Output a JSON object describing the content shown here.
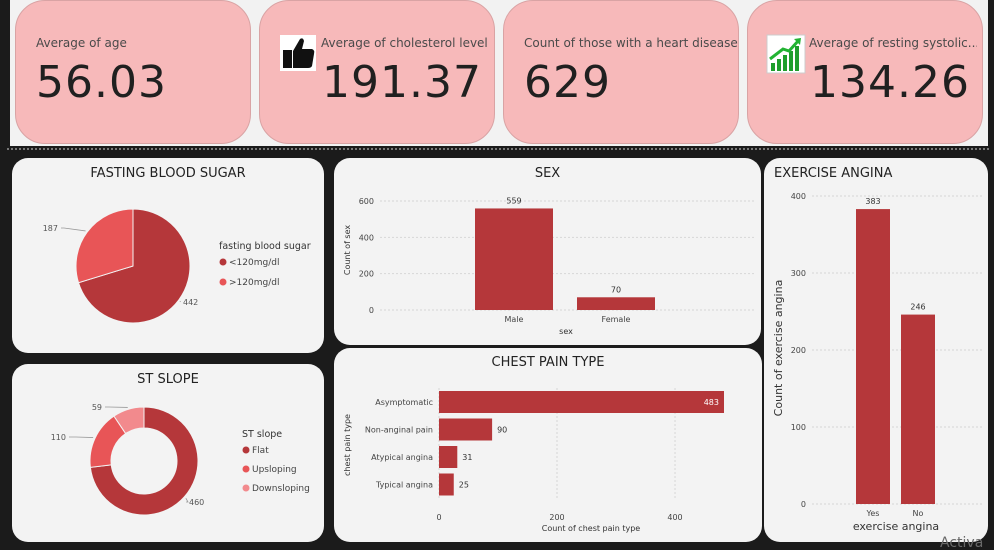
{
  "kpis": [
    {
      "label": "Average of age",
      "value": "56.03"
    },
    {
      "label": "Average of cholesterol level",
      "value": "191.37"
    },
    {
      "label": "Count of those with a heart disease",
      "value": "629"
    },
    {
      "label": "Average of resting systolic...",
      "value": "134.26"
    }
  ],
  "icons": {
    "kpi2": "thumbs-up-icon",
    "kpi4": "growth-chart-icon"
  },
  "colors": {
    "dark": "#b5373a",
    "medium": "#e85557",
    "light": "#f28a8d",
    "card": "#f7b9ba"
  },
  "watermark": "Activa",
  "chart_data": [
    {
      "id": "fbs",
      "type": "pie",
      "title": "FASTING BLOOD SUGAR",
      "legend_title": "fasting blood sugar",
      "legend_position": "right",
      "categories": [
        "<120mg/dl",
        ">120mg/dl"
      ],
      "values": [
        442,
        187
      ],
      "colors": [
        "#b5373a",
        "#e85557"
      ]
    },
    {
      "id": "sex",
      "type": "bar",
      "title": "SEX",
      "xlabel": "sex",
      "ylabel": "Count of sex",
      "categories": [
        "Male",
        "Female"
      ],
      "values": [
        559,
        70
      ],
      "ylim": [
        0,
        600
      ],
      "yticks": [
        0,
        200,
        400,
        600
      ],
      "grid": true
    },
    {
      "id": "angina",
      "type": "bar",
      "title": "EXERCISE ANGINA",
      "xlabel": "exercise angina",
      "ylabel": "Count of exercise angina",
      "categories": [
        "Yes",
        "No"
      ],
      "values": [
        383,
        246
      ],
      "ylim": [
        0,
        400
      ],
      "yticks": [
        0,
        100,
        200,
        300,
        400
      ],
      "grid": true
    },
    {
      "id": "slope",
      "type": "pie",
      "title": "ST SLOPE",
      "legend_title": "ST slope",
      "legend_position": "right",
      "categories": [
        "Flat",
        "Upsloping",
        "Downsloping"
      ],
      "values": [
        460,
        110,
        59
      ],
      "colors": [
        "#b5373a",
        "#e85557",
        "#f28a8d"
      ]
    },
    {
      "id": "chest",
      "type": "bar",
      "orientation": "horizontal",
      "title": "CHEST PAIN TYPE",
      "xlabel": "Count of chest pain type",
      "ylabel": "chest pain type",
      "categories": [
        "Asymptomatic",
        "Non-anginal pain",
        "Atypical angina",
        "Typical angina"
      ],
      "values": [
        483,
        90,
        31,
        25
      ],
      "xlim": [
        0,
        483
      ],
      "xticks": [
        0,
        200,
        400
      ],
      "grid": true
    }
  ]
}
